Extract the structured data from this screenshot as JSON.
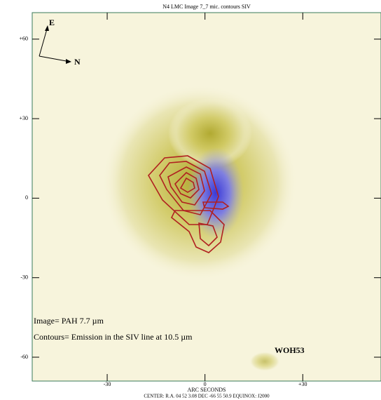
{
  "title": "N4 LMC Image 7_7 mic. contours SIV",
  "x_axis": {
    "label": "ARC SECONDS",
    "lim": [
      -53,
      54
    ],
    "ticks": [
      {
        "value": -30,
        "label": "-30"
      },
      0,
      {
        "value": 30,
        "label": "+30"
      }
    ]
  },
  "y_axis": {
    "lim": [
      -69,
      70
    ],
    "ticks": [
      {
        "value": 60,
        "label": "+60"
      },
      {
        "value": 30,
        "label": "+30"
      },
      0,
      {
        "value": -30,
        "label": "-30"
      },
      {
        "value": -60,
        "label": "-60"
      }
    ]
  },
  "center_note": "CENTER: R.A. 04 52 3.08 DEC -66 55 50.9 EQUINOX: J2000",
  "compass": {
    "east": "E",
    "north": "N"
  },
  "annotations": {
    "image": "Image= PAH 7.7 µm",
    "contours": "Contours= Emission in the SIV line at 10.5  µm",
    "source": "WOH53"
  }
}
